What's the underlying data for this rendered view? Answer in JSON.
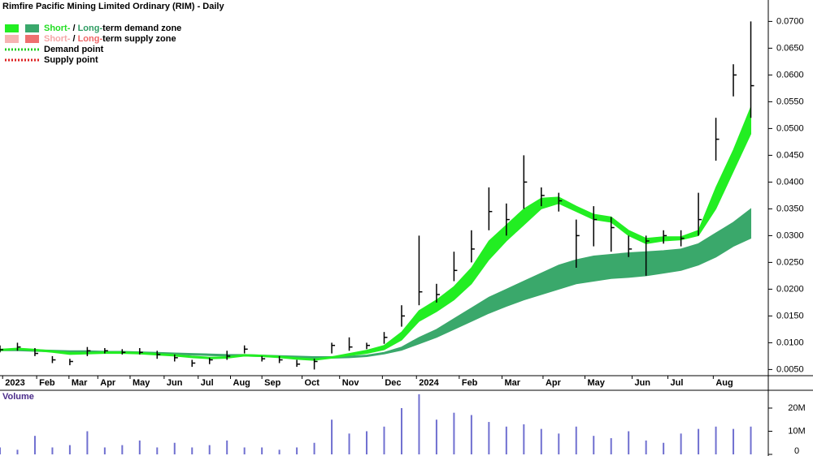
{
  "chart_data": {
    "type": "candlestick",
    "title": "Rimfire Pacific Mining Limited Ordinary (RIM) - Daily",
    "legend": [
      {
        "swatches": [
          "#22ee22",
          "#3aa86b"
        ],
        "parts": [
          "Short-",
          " / ",
          "Long-",
          "term demand zone"
        ],
        "part_colors": [
          "#22dd22",
          "#000000",
          "#2e9c62",
          "#000000"
        ]
      },
      {
        "swatches": [
          "#f6b3b3",
          "#ef6f6f"
        ],
        "parts": [
          "Short-",
          " / ",
          "Long-",
          "term supply zone"
        ],
        "part_colors": [
          "#f4a6a6",
          "#000000",
          "#ee6666",
          "#000000"
        ]
      },
      {
        "line_color": "#22cc22",
        "label": "Demand point"
      },
      {
        "line_color": "#dd2222",
        "label": "Supply point"
      }
    ],
    "xlim": [
      0,
      88
    ],
    "xticks": [
      {
        "value": 0.3,
        "label": "2023"
      },
      {
        "value": 4.2,
        "label": "Feb"
      },
      {
        "value": 7.9,
        "label": "Mar"
      },
      {
        "value": 11.2,
        "label": "Apr"
      },
      {
        "value": 14.9,
        "label": "May"
      },
      {
        "value": 18.8,
        "label": "Jun"
      },
      {
        "value": 22.7,
        "label": "Jul"
      },
      {
        "value": 26.4,
        "label": "Aug"
      },
      {
        "value": 30,
        "label": "Sep"
      },
      {
        "value": 34.6,
        "label": "Oct"
      },
      {
        "value": 38.9,
        "label": "Nov"
      },
      {
        "value": 43.8,
        "label": "Dec"
      },
      {
        "value": 47.7,
        "label": "2024"
      },
      {
        "value": 52.6,
        "label": "Feb"
      },
      {
        "value": 57.5,
        "label": "Mar"
      },
      {
        "value": 62.2,
        "label": "Apr"
      },
      {
        "value": 67,
        "label": "May"
      },
      {
        "value": 72.4,
        "label": "Jun"
      },
      {
        "value": 76.5,
        "label": "Jul"
      },
      {
        "value": 81.7,
        "label": "Aug"
      }
    ],
    "ylim": [
      0.004,
      0.074
    ],
    "yticks": [
      {
        "value": 0.005,
        "label": "0.0050"
      },
      {
        "value": 0.01,
        "label": "0.0100"
      },
      {
        "value": 0.015,
        "label": "0.0150"
      },
      {
        "value": 0.02,
        "label": "0.0200"
      },
      {
        "value": 0.025,
        "label": "0.0250"
      },
      {
        "value": 0.03,
        "label": "0.0300"
      },
      {
        "value": 0.035,
        "label": "0.0350"
      },
      {
        "value": 0.04,
        "label": "0.0400"
      },
      {
        "value": 0.045,
        "label": "0.0450"
      },
      {
        "value": 0.05,
        "label": "0.0500"
      },
      {
        "value": 0.055,
        "label": "0.0550"
      },
      {
        "value": 0.06,
        "label": "0.0600"
      },
      {
        "value": 0.065,
        "label": "0.0650"
      },
      {
        "value": 0.07,
        "label": "0.0700"
      }
    ],
    "x": [
      0,
      2,
      4,
      6,
      8,
      10,
      12,
      14,
      16,
      18,
      20,
      22,
      24,
      26,
      28,
      30,
      32,
      34,
      36,
      38,
      40,
      42,
      44,
      46,
      48,
      50,
      52,
      54,
      56,
      58,
      60,
      62,
      64,
      66,
      68,
      70,
      72,
      74,
      76,
      78,
      80,
      82,
      84,
      86
    ],
    "high": [
      0.0095,
      0.01,
      0.009,
      0.0075,
      0.007,
      0.0092,
      0.009,
      0.0088,
      0.009,
      0.0085,
      0.0078,
      0.0068,
      0.0072,
      0.0085,
      0.0095,
      0.0075,
      0.0075,
      0.0068,
      0.007,
      0.01,
      0.011,
      0.01,
      0.012,
      0.017,
      0.03,
      0.021,
      0.027,
      0.031,
      0.039,
      0.036,
      0.045,
      0.039,
      0.038,
      0.033,
      0.0355,
      0.0335,
      0.03,
      0.03,
      0.031,
      0.031,
      0.038,
      0.052,
      0.062,
      0.07
    ],
    "low": [
      0.0082,
      0.0085,
      0.0075,
      0.0062,
      0.0058,
      0.0075,
      0.008,
      0.0078,
      0.0078,
      0.007,
      0.0065,
      0.0055,
      0.006,
      0.0068,
      0.008,
      0.0065,
      0.0062,
      0.0055,
      0.005,
      0.008,
      0.0085,
      0.0088,
      0.0098,
      0.013,
      0.017,
      0.0175,
      0.0215,
      0.025,
      0.031,
      0.03,
      0.035,
      0.0355,
      0.0345,
      0.024,
      0.028,
      0.027,
      0.026,
      0.0225,
      0.0285,
      0.028,
      0.03,
      0.044,
      0.056,
      0.052
    ],
    "close": [
      0.0087,
      0.0092,
      0.008,
      0.0068,
      0.0065,
      0.0085,
      0.0085,
      0.0082,
      0.0082,
      0.0078,
      0.0072,
      0.0062,
      0.0068,
      0.0075,
      0.0088,
      0.007,
      0.0068,
      0.006,
      0.0065,
      0.0095,
      0.0092,
      0.0095,
      0.011,
      0.015,
      0.0195,
      0.019,
      0.0235,
      0.0275,
      0.0345,
      0.033,
      0.04,
      0.0375,
      0.0365,
      0.03,
      0.033,
      0.0315,
      0.0275,
      0.029,
      0.03,
      0.0295,
      0.033,
      0.048,
      0.06,
      0.058
    ],
    "candle_color": "#000000",
    "zones": [
      {
        "color": "#3aa86b",
        "upper": [
          0.0088,
          0.0088,
          0.0087,
          0.0086,
          0.0085,
          0.0085,
          0.0084,
          0.0084,
          0.0083,
          0.0082,
          0.0081,
          0.008,
          0.0079,
          0.0078,
          0.0078,
          0.0077,
          0.0076,
          0.0075,
          0.0074,
          0.0074,
          0.0075,
          0.0077,
          0.0082,
          0.0092,
          0.011,
          0.0125,
          0.0145,
          0.0165,
          0.0185,
          0.02,
          0.0215,
          0.023,
          0.0245,
          0.0255,
          0.0262,
          0.0265,
          0.0268,
          0.027,
          0.0272,
          0.0275,
          0.0285,
          0.0305,
          0.0325,
          0.035
        ],
        "lower": [
          0.0085,
          0.0085,
          0.0084,
          0.0083,
          0.0082,
          0.0082,
          0.0081,
          0.0081,
          0.008,
          0.0079,
          0.0078,
          0.0077,
          0.0076,
          0.0075,
          0.0075,
          0.0074,
          0.0073,
          0.0072,
          0.0071,
          0.0071,
          0.0072,
          0.0074,
          0.0079,
          0.0086,
          0.0098,
          0.011,
          0.0125,
          0.014,
          0.0155,
          0.0168,
          0.018,
          0.019,
          0.02,
          0.021,
          0.0215,
          0.022,
          0.0222,
          0.0225,
          0.023,
          0.0235,
          0.0245,
          0.026,
          0.028,
          0.0295
        ]
      },
      {
        "color": "#22ee22",
        "upper": [
          0.0088,
          0.009,
          0.0088,
          0.0085,
          0.0082,
          0.0082,
          0.0083,
          0.0083,
          0.0082,
          0.008,
          0.0078,
          0.0075,
          0.0073,
          0.0074,
          0.0078,
          0.0077,
          0.0075,
          0.0072,
          0.007,
          0.0074,
          0.008,
          0.0086,
          0.0095,
          0.012,
          0.016,
          0.018,
          0.0205,
          0.024,
          0.029,
          0.032,
          0.035,
          0.037,
          0.0372,
          0.0355,
          0.034,
          0.0335,
          0.031,
          0.0295,
          0.0298,
          0.0298,
          0.031,
          0.039,
          0.046,
          0.054
        ],
        "lower": [
          0.0085,
          0.0087,
          0.0085,
          0.0082,
          0.0078,
          0.0079,
          0.008,
          0.008,
          0.0079,
          0.0077,
          0.0075,
          0.0072,
          0.007,
          0.0071,
          0.0075,
          0.0074,
          0.0072,
          0.0069,
          0.0067,
          0.0071,
          0.0076,
          0.008,
          0.0087,
          0.0105,
          0.014,
          0.0158,
          0.018,
          0.021,
          0.0255,
          0.029,
          0.032,
          0.035,
          0.036,
          0.0345,
          0.033,
          0.0325,
          0.03,
          0.0285,
          0.029,
          0.0292,
          0.03,
          0.035,
          0.042,
          0.049
        ]
      }
    ],
    "volume_label": "Volume",
    "volume_color": "#7070d0",
    "volume": [
      3000000,
      2000000,
      8000000,
      3000000,
      4000000,
      10000000,
      3000000,
      4000000,
      6000000,
      3000000,
      5000000,
      3000000,
      4000000,
      6000000,
      3000000,
      3000000,
      2000000,
      3000000,
      5000000,
      15000000,
      9000000,
      10000000,
      12000000,
      20000000,
      26000000,
      15000000,
      18000000,
      17000000,
      14000000,
      12000000,
      13000000,
      11000000,
      9000000,
      12000000,
      8000000,
      7000000,
      10000000,
      6000000,
      5000000,
      9000000,
      11000000,
      12000000,
      11000000,
      12000000
    ],
    "vlim": [
      0,
      27000000
    ],
    "vticks": [
      0,
      {
        "value": 10000000,
        "label": "10M"
      },
      {
        "value": 20000000,
        "label": "20M"
      }
    ]
  }
}
